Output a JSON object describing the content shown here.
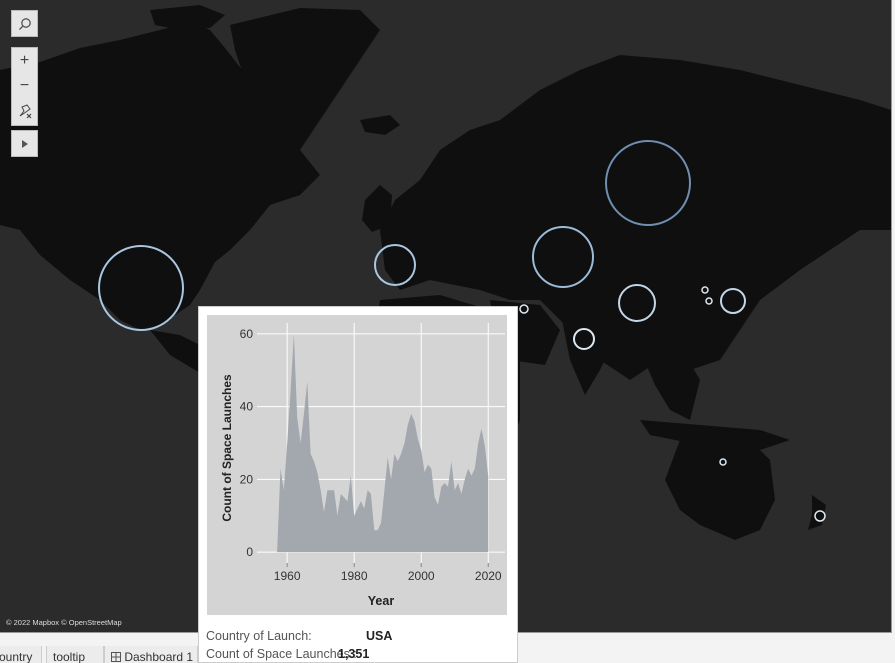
{
  "map": {
    "attribution": "© 2022 Mapbox © OpenStreetMap",
    "background_color": "#2b2b2b",
    "land_color": "#0f0f0f",
    "circle_stroke_color": "#a9c7e0",
    "controls": {
      "search_icon": "search-icon",
      "zoom_in_label": "+",
      "zoom_out_label": "−",
      "pin_icon": "pin-remove-icon",
      "expand_icon": "play-icon"
    }
  },
  "tooltip": {
    "country_label": "Country of Launch:",
    "country_value": "USA",
    "count_label": "Count of Space Launches :",
    "count_value": "1,351"
  },
  "chart_data": {
    "type": "area",
    "title": "",
    "xlabel": "Year",
    "ylabel": "Count of Space Launches",
    "xlim": [
      1951,
      2025
    ],
    "ylim": [
      -3,
      63
    ],
    "xticks": [
      1960,
      1980,
      2000,
      2020
    ],
    "yticks": [
      0,
      20,
      40,
      60
    ],
    "grid": true,
    "fill_color": "#a3a8ae",
    "x": [
      1957,
      1958,
      1959,
      1960,
      1961,
      1962,
      1963,
      1964,
      1965,
      1966,
      1967,
      1968,
      1969,
      1970,
      1971,
      1972,
      1973,
      1974,
      1975,
      1976,
      1977,
      1978,
      1979,
      1980,
      1981,
      1982,
      1983,
      1984,
      1985,
      1986,
      1987,
      1988,
      1989,
      1990,
      1991,
      1992,
      1993,
      1994,
      1995,
      1996,
      1997,
      1998,
      1999,
      2000,
      2001,
      2002,
      2003,
      2004,
      2005,
      2006,
      2007,
      2008,
      2009,
      2010,
      2011,
      2012,
      2013,
      2014,
      2015,
      2016,
      2017,
      2018,
      2019,
      2020
    ],
    "values": [
      0,
      23,
      17,
      30,
      44,
      60,
      37,
      30,
      38,
      47,
      27,
      25,
      22,
      17,
      11,
      17,
      17,
      17,
      10,
      16,
      15,
      14,
      21,
      10,
      12,
      14,
      12,
      17,
      16,
      6,
      6,
      8,
      17,
      26,
      20,
      27,
      25,
      27,
      30,
      35,
      38,
      36,
      31,
      28,
      22,
      24,
      23,
      15,
      13,
      18,
      19,
      18,
      25,
      17,
      19,
      16,
      20,
      23,
      21,
      23,
      30,
      34,
      29,
      21
    ]
  },
  "tabs": [
    {
      "label": "ountry"
    },
    {
      "label": "tooltip"
    },
    {
      "label": "Dashboard 1"
    }
  ]
}
